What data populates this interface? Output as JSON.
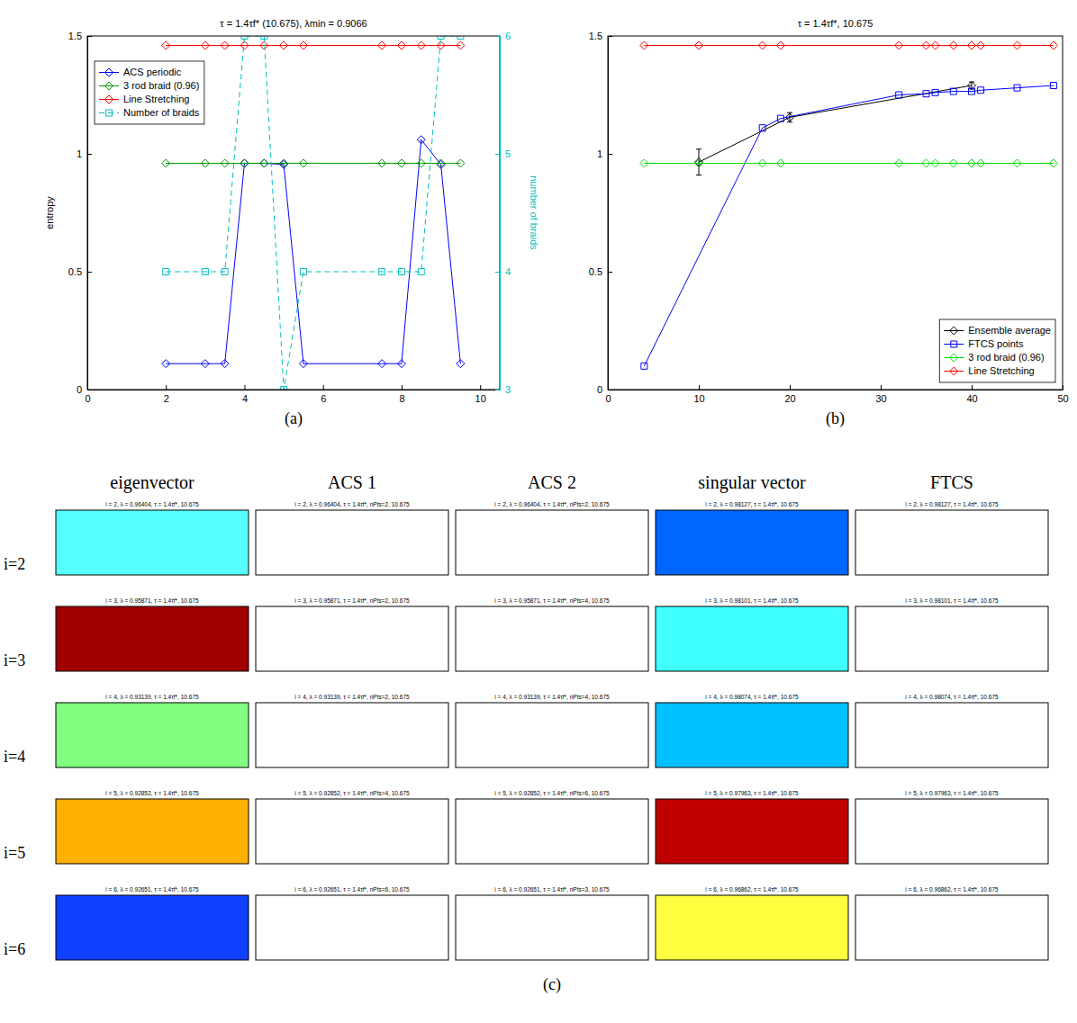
{
  "chart_data": [
    {
      "type": "line",
      "panel": "(a)",
      "title": "τ = 1.4τf* (10.675), λmin = 0.9066",
      "y_label": "entropy",
      "y2_label": "number of braids",
      "xlim": [
        0,
        10.5
      ],
      "xticks": [
        0,
        2,
        4,
        6,
        8,
        10
      ],
      "ylim": [
        0,
        1.5
      ],
      "yticks": [
        0,
        0.5,
        1,
        1.5
      ],
      "y2lim": [
        3,
        6
      ],
      "y2ticks": [
        3,
        4,
        5,
        6
      ],
      "legend": "upper left",
      "x": [
        2,
        3,
        3.5,
        4,
        4.5,
        5,
        5.5,
        7.5,
        8,
        8.5,
        9,
        9.5
      ],
      "series": [
        {
          "name": "ACS periodic",
          "color": "#0000ff",
          "marker": "diamond",
          "line_style": "solid",
          "values": [
            0.11,
            0.11,
            0.11,
            0.96,
            0.96,
            0.955,
            0.11,
            0.11,
            0.11,
            1.06,
            0.955,
            0.11
          ]
        },
        {
          "name": "3 rod braid (0.96)",
          "color": "#009900",
          "marker": "diamond",
          "line_style": "solid",
          "values": [
            0.96,
            0.96,
            0.96,
            0.96,
            0.96,
            0.96,
            0.96,
            0.96,
            0.96,
            0.96,
            0.96,
            0.96
          ]
        },
        {
          "name": "Line Stretching",
          "color": "#ff0000",
          "marker": "diamond",
          "line_style": "solid",
          "values": [
            1.46,
            1.46,
            1.46,
            1.46,
            1.46,
            1.46,
            1.46,
            1.46,
            1.46,
            1.46,
            1.46,
            1.46
          ]
        },
        {
          "name": "Number of braids",
          "color": "#00bfbf",
          "marker": "square",
          "line_style": "dashed",
          "axis": "y2",
          "values": [
            4,
            4,
            4,
            6,
            6,
            3,
            4,
            4,
            4,
            4,
            6,
            6
          ]
        }
      ]
    },
    {
      "type": "line",
      "panel": "(b)",
      "title": "τ = 1.4τf*, 10.675",
      "xlim": [
        0,
        50
      ],
      "xticks": [
        0,
        10,
        20,
        30,
        40,
        50
      ],
      "ylim": [
        0,
        1.5
      ],
      "yticks": [
        0,
        0.5,
        1,
        1.5
      ],
      "legend": "lower right",
      "series": [
        {
          "name": "Ensemble average",
          "color": "#000000",
          "marker": "diamond",
          "line_style": "solid",
          "x": [
            10,
            20,
            40
          ],
          "values": [
            0.965,
            1.155,
            1.29
          ],
          "error": [
            0.055,
            0.02,
            0.015
          ]
        },
        {
          "name": "FTCS points",
          "color": "#0000ff",
          "marker": "square",
          "line_style": "solid",
          "x": [
            4,
            17,
            19,
            32,
            35,
            36,
            38,
            40,
            41,
            45,
            49
          ],
          "values": [
            0.1,
            1.11,
            1.15,
            1.25,
            1.255,
            1.26,
            1.265,
            1.265,
            1.27,
            1.28,
            1.29
          ]
        },
        {
          "name": "3 rod braid (0.96)",
          "color": "#00e000",
          "marker": "diamond",
          "line_style": "solid",
          "x": [
            4,
            10,
            17,
            19,
            32,
            35,
            36,
            38,
            40,
            41,
            45,
            49
          ],
          "values": [
            0.96,
            0.96,
            0.96,
            0.96,
            0.96,
            0.96,
            0.96,
            0.96,
            0.96,
            0.96,
            0.96,
            0.96
          ]
        },
        {
          "name": "Line Stretching",
          "color": "#ff0000",
          "marker": "diamond",
          "line_style": "solid",
          "x": [
            4,
            10,
            17,
            19,
            32,
            35,
            36,
            38,
            40,
            41,
            45,
            49
          ],
          "values": [
            1.46,
            1.46,
            1.46,
            1.46,
            1.46,
            1.46,
            1.46,
            1.46,
            1.46,
            1.46,
            1.46,
            1.46
          ]
        }
      ]
    }
  ],
  "figure_c": {
    "label": "(c)",
    "columns": [
      "eigenvector",
      "ACS 1",
      "ACS 2",
      "singular vector",
      "FTCS"
    ],
    "rows": [
      {
        "label": "i=2",
        "cells": [
          {
            "title": "i = 2, λ = 0.96404, τ = 1.4τf*, 10.675",
            "color": "#55ffff"
          },
          {
            "title": "i = 2, λ = 0.96404, τ = 1.4τf*, nPts=2, 10.675",
            "color": "#ffffff"
          },
          {
            "title": "i = 2, λ = 0.96404, τ = 1.4τf*, nPts=2, 10.675",
            "color": "#ffffff"
          },
          {
            "title": "i = 2, λ = 0.98127, τ = 1.4τf*, 10.675",
            "color": "#0066ff"
          },
          {
            "title": "i = 2, λ = 0.98127, τ = 1.4τf*, 10.675",
            "color": "#ffffff"
          }
        ]
      },
      {
        "label": "i=3",
        "cells": [
          {
            "title": "i = 3, λ = 0.95871, τ = 1.4τf*, 10.675",
            "color": "#a00000"
          },
          {
            "title": "i = 3, λ = 0.95871, τ = 1.4τf*, nPts=2, 10.675",
            "color": "#ffffff"
          },
          {
            "title": "i = 3, λ = 0.95871, τ = 1.4τf*, nPts=4, 10.675",
            "color": "#ffffff"
          },
          {
            "title": "i = 3, λ = 0.98101, τ = 1.4τf*, 10.675",
            "color": "#40ffff"
          },
          {
            "title": "i = 3, λ = 0.98101, τ = 1.4τf*, 10.675",
            "color": "#ffffff"
          }
        ]
      },
      {
        "label": "i=4",
        "cells": [
          {
            "title": "i = 4, λ = 0.93139, τ = 1.4τf*, 10.675",
            "color": "#80ff80"
          },
          {
            "title": "i = 4, λ = 0.93139, τ = 1.4τf*, nPts=2, 10.675",
            "color": "#ffffff"
          },
          {
            "title": "i = 4, λ = 0.93139, τ = 1.4τf*, nPts=4, 10.675",
            "color": "#ffffff"
          },
          {
            "title": "i = 4, λ = 0.98074, τ = 1.4τf*, 10.675",
            "color": "#00c0ff"
          },
          {
            "title": "i = 4, λ = 0.98074, τ = 1.4τf*, 10.675",
            "color": "#ffffff"
          }
        ]
      },
      {
        "label": "i=5",
        "cells": [
          {
            "title": "i = 5, λ = 0.92852, τ = 1.4τf*, 10.675",
            "color": "#ffb000"
          },
          {
            "title": "i = 5, λ = 0.92852, τ = 1.4τf*, nPts=4, 10.675",
            "color": "#ffffff"
          },
          {
            "title": "i = 5, λ = 0.92852, τ = 1.4τf*, nPts=6, 10.675",
            "color": "#ffffff"
          },
          {
            "title": "i = 5, λ = 0.97963, τ = 1.4τf*, 10.675",
            "color": "#c00000"
          },
          {
            "title": "i = 5, λ = 0.97963, τ = 1.4τf*, 10.675",
            "color": "#ffffff"
          }
        ]
      },
      {
        "label": "i=6",
        "cells": [
          {
            "title": "i = 6, λ = 0.92651, τ = 1.4τf*, 10.675",
            "color": "#1040ff"
          },
          {
            "title": "i = 6, λ = 0.92651, τ = 1.4τf*, nPts=6, 10.675",
            "color": "#ffffff"
          },
          {
            "title": "i = 6, λ = 0.92651, τ = 1.4τf*, nPts=3, 10.675",
            "color": "#ffffff"
          },
          {
            "title": "i = 6, λ = 0.96862, τ = 1.4τf*, 10.675",
            "color": "#ffff40"
          },
          {
            "title": "i = 6, λ = 0.96862, τ = 1.4τf*, 10.675",
            "color": "#ffffff"
          }
        ]
      }
    ]
  }
}
